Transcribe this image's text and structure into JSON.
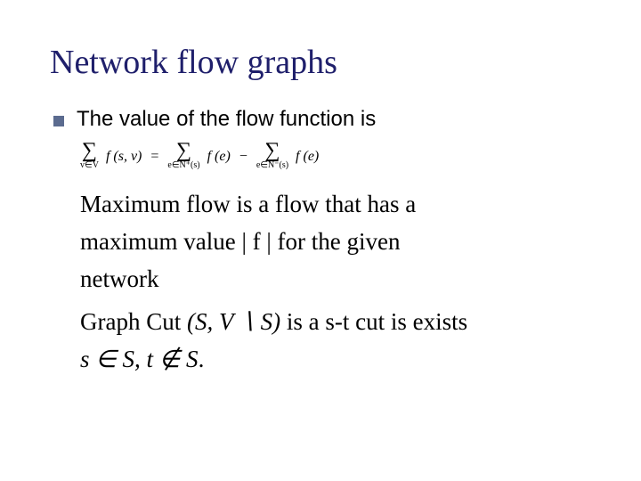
{
  "slide": {
    "title": "Network flow graphs",
    "title_color": "#1f1f6b",
    "title_fontsize": 38,
    "bullet": {
      "marker_color": "#5b6b8f",
      "text": "The value of the flow function is",
      "text_fontsize": 24,
      "text_color": "#000000"
    },
    "formula": {
      "lhs_sigma_sub": "v∈V",
      "lhs_term": "f (s, v)",
      "eq": "=",
      "mid_sigma_sub": "e∈N⁺(s)",
      "mid_term": "f (e)",
      "minus": "−",
      "rhs_sigma_sub": "e∈N⁻(s)",
      "rhs_term": "f (e)",
      "fontsize": 15
    },
    "paragraph1": {
      "line1": "Maximum flow is a flow that has a",
      "line2a": "maximum value ",
      "absf": "| f |",
      "line2b": " for the given",
      "line3": "network"
    },
    "paragraph2": {
      "pre": "Graph Cut ",
      "set": "(S, V ∖ S)",
      "post": " is a s-t cut is exists"
    },
    "paragraph3": {
      "expr1": "s ∈ S, t ∉ S",
      "dot": "."
    },
    "background_color": "#ffffff",
    "body_fontsize": 27
  }
}
